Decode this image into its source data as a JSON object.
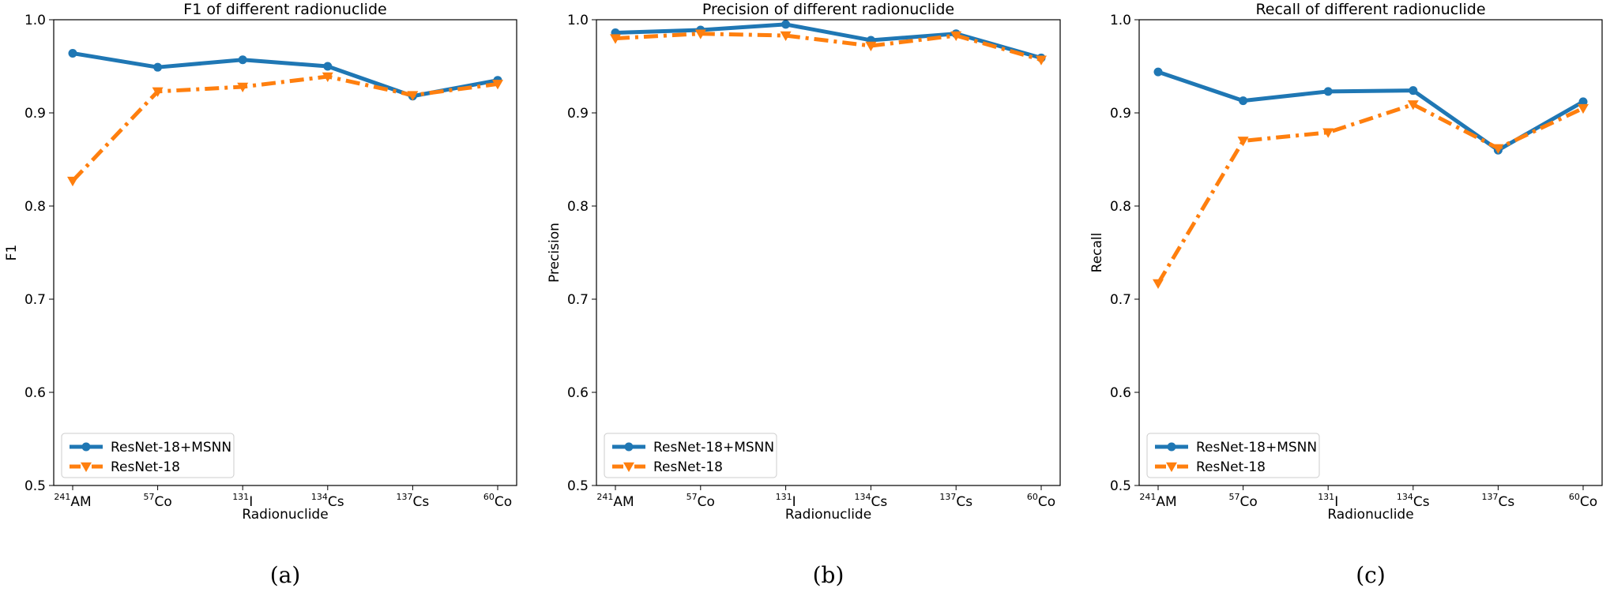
{
  "chart_data": [
    {
      "type": "line",
      "title": "F1 of different radionuclide",
      "xlabel": "Radionuclide",
      "ylabel": "F1",
      "categories": [
        {
          "sup": "241",
          "base": "AM"
        },
        {
          "sup": "57",
          "base": "Co"
        },
        {
          "sup": "131",
          "base": "I"
        },
        {
          "sup": "134",
          "base": "Cs"
        },
        {
          "sup": "137",
          "base": "Cs"
        },
        {
          "sup": "60",
          "base": "Co"
        }
      ],
      "ylim": [
        0.5,
        1.0
      ],
      "yticks": [
        "0.5",
        "0.6",
        "0.7",
        "0.8",
        "0.9",
        "1.0"
      ],
      "legend_position": "lower-left",
      "series": [
        {
          "name": "ResNet-18+MSNN",
          "color": "#1f77b4",
          "marker": "circle",
          "line": "solid",
          "values": [
            0.964,
            0.949,
            0.957,
            0.95,
            0.918,
            0.935
          ]
        },
        {
          "name": "ResNet-18",
          "color": "#ff7f0e",
          "marker": "triangle-down",
          "line": "dashdot",
          "values": [
            0.827,
            0.923,
            0.928,
            0.939,
            0.919,
            0.931
          ]
        }
      ],
      "caption": "(a)"
    },
    {
      "type": "line",
      "title": "Precision of different radionuclide",
      "xlabel": "Radionuclide",
      "ylabel": "Precision",
      "categories": [
        {
          "sup": "241",
          "base": "AM"
        },
        {
          "sup": "57",
          "base": "Co"
        },
        {
          "sup": "131",
          "base": "I"
        },
        {
          "sup": "134",
          "base": "Cs"
        },
        {
          "sup": "137",
          "base": "Cs"
        },
        {
          "sup": "60",
          "base": "Co"
        }
      ],
      "ylim": [
        0.5,
        1.0
      ],
      "yticks": [
        "0.5",
        "0.6",
        "0.7",
        "0.8",
        "0.9",
        "1.0"
      ],
      "legend_position": "lower-left",
      "series": [
        {
          "name": "ResNet-18+MSNN",
          "color": "#1f77b4",
          "marker": "circle",
          "line": "solid",
          "values": [
            0.986,
            0.989,
            0.995,
            0.978,
            0.985,
            0.959
          ]
        },
        {
          "name": "ResNet-18",
          "color": "#ff7f0e",
          "marker": "triangle-down",
          "line": "dashdot",
          "values": [
            0.98,
            0.985,
            0.983,
            0.972,
            0.983,
            0.957
          ]
        }
      ],
      "caption": "(b)"
    },
    {
      "type": "line",
      "title": "Recall of different radionuclide",
      "xlabel": "Radionuclide",
      "ylabel": "Recall",
      "categories": [
        {
          "sup": "241",
          "base": "AM"
        },
        {
          "sup": "57",
          "base": "Co"
        },
        {
          "sup": "131",
          "base": "I"
        },
        {
          "sup": "134",
          "base": "Cs"
        },
        {
          "sup": "137",
          "base": "Cs"
        },
        {
          "sup": "60",
          "base": "Co"
        }
      ],
      "ylim": [
        0.5,
        1.0
      ],
      "yticks": [
        "0.5",
        "0.6",
        "0.7",
        "0.8",
        "0.9",
        "1.0"
      ],
      "legend_position": "lower-left",
      "series": [
        {
          "name": "ResNet-18+MSNN",
          "color": "#1f77b4",
          "marker": "circle",
          "line": "solid",
          "values": [
            0.944,
            0.913,
            0.923,
            0.924,
            0.86,
            0.912
          ]
        },
        {
          "name": "ResNet-18",
          "color": "#ff7f0e",
          "marker": "triangle-down",
          "line": "dashdot",
          "values": [
            0.717,
            0.87,
            0.879,
            0.909,
            0.862,
            0.905
          ]
        }
      ],
      "caption": "(c)"
    }
  ]
}
